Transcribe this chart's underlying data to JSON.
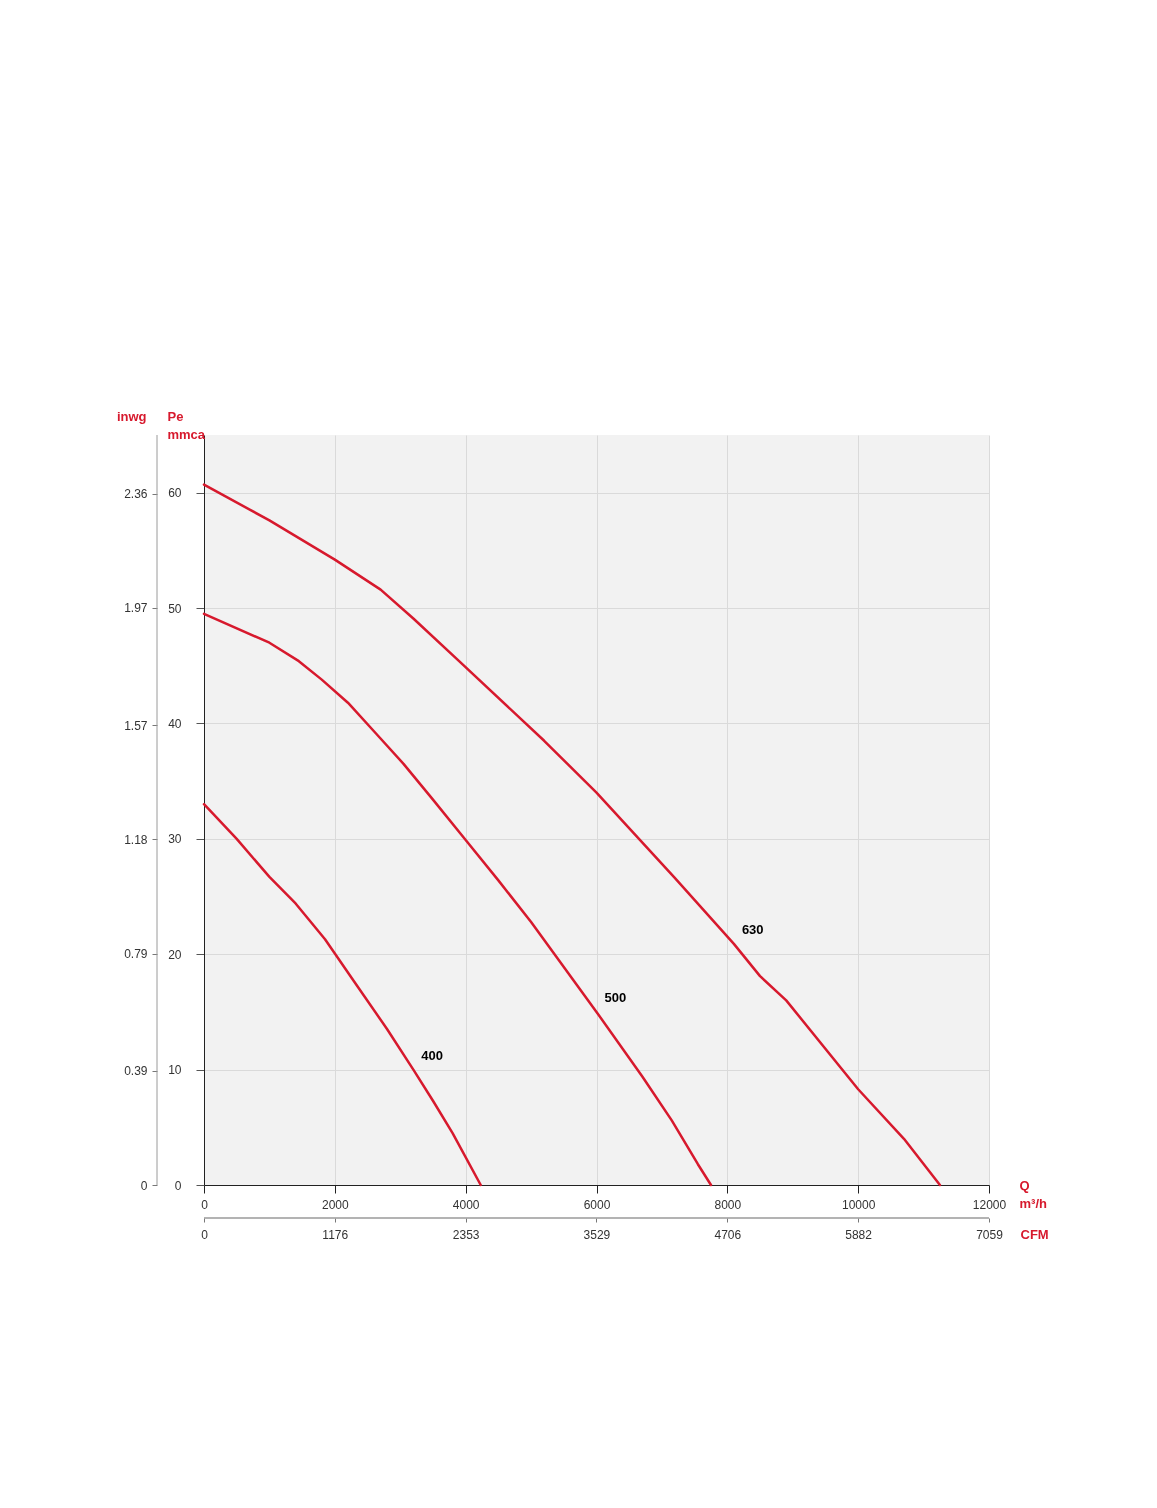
{
  "chart_data": {
    "type": "line",
    "xlabel": "Q\nm³/h",
    "ylabel": "Pe\nmmca",
    "y2label": "inwg",
    "x2label": "CFM",
    "xlim": [
      0,
      12000
    ],
    "xticks": [
      0,
      2000,
      4000,
      6000,
      8000,
      10000,
      12000
    ],
    "x2lim": [
      0,
      7059
    ],
    "x2ticks": [
      0,
      1176,
      2353,
      3529,
      4706,
      5882,
      7059
    ],
    "ylim": [
      0,
      65
    ],
    "yticks": [
      0,
      10,
      20,
      30,
      40,
      50,
      60
    ],
    "y2lim": [
      0,
      2.56
    ],
    "y2ticks": [
      0,
      0.39,
      0.79,
      1.18,
      1.57,
      1.97,
      2.36
    ],
    "grid": true,
    "marker": "none",
    "line_style": "solid",
    "series": [
      {
        "name": "400",
        "color": "#d7192d",
        "x": [
          0,
          500,
          1000,
          1400,
          1850,
          2300,
          2800,
          3200,
          3500,
          3800,
          4230
        ],
        "values": [
          33.0,
          30.0,
          26.7,
          24.4,
          21.3,
          17.6,
          13.5,
          10.0,
          7.3,
          4.5,
          0
        ]
      },
      {
        "name": "500",
        "color": "#d7192d",
        "x": [
          0,
          1000,
          1450,
          1800,
          2200,
          2650,
          3050,
          3500,
          4000,
          4500,
          5000,
          6000,
          6700,
          7150,
          7550,
          7750
        ],
        "values": [
          49.5,
          47.0,
          45.4,
          43.8,
          41.8,
          39.0,
          36.5,
          33.4,
          29.9,
          26.4,
          22.8,
          15.0,
          9.4,
          5.6,
          1.8,
          0
        ]
      },
      {
        "name": "630",
        "color": "#d7192d",
        "x": [
          0,
          1000,
          2000,
          2700,
          3200,
          3900,
          5200,
          6000,
          7200,
          8100,
          8500,
          8900,
          10000,
          10700,
          11250
        ],
        "values": [
          60.7,
          57.6,
          54.2,
          51.6,
          49.1,
          45.4,
          38.5,
          34.0,
          26.6,
          20.9,
          18.1,
          16.0,
          8.3,
          4.0,
          0
        ]
      }
    ]
  }
}
